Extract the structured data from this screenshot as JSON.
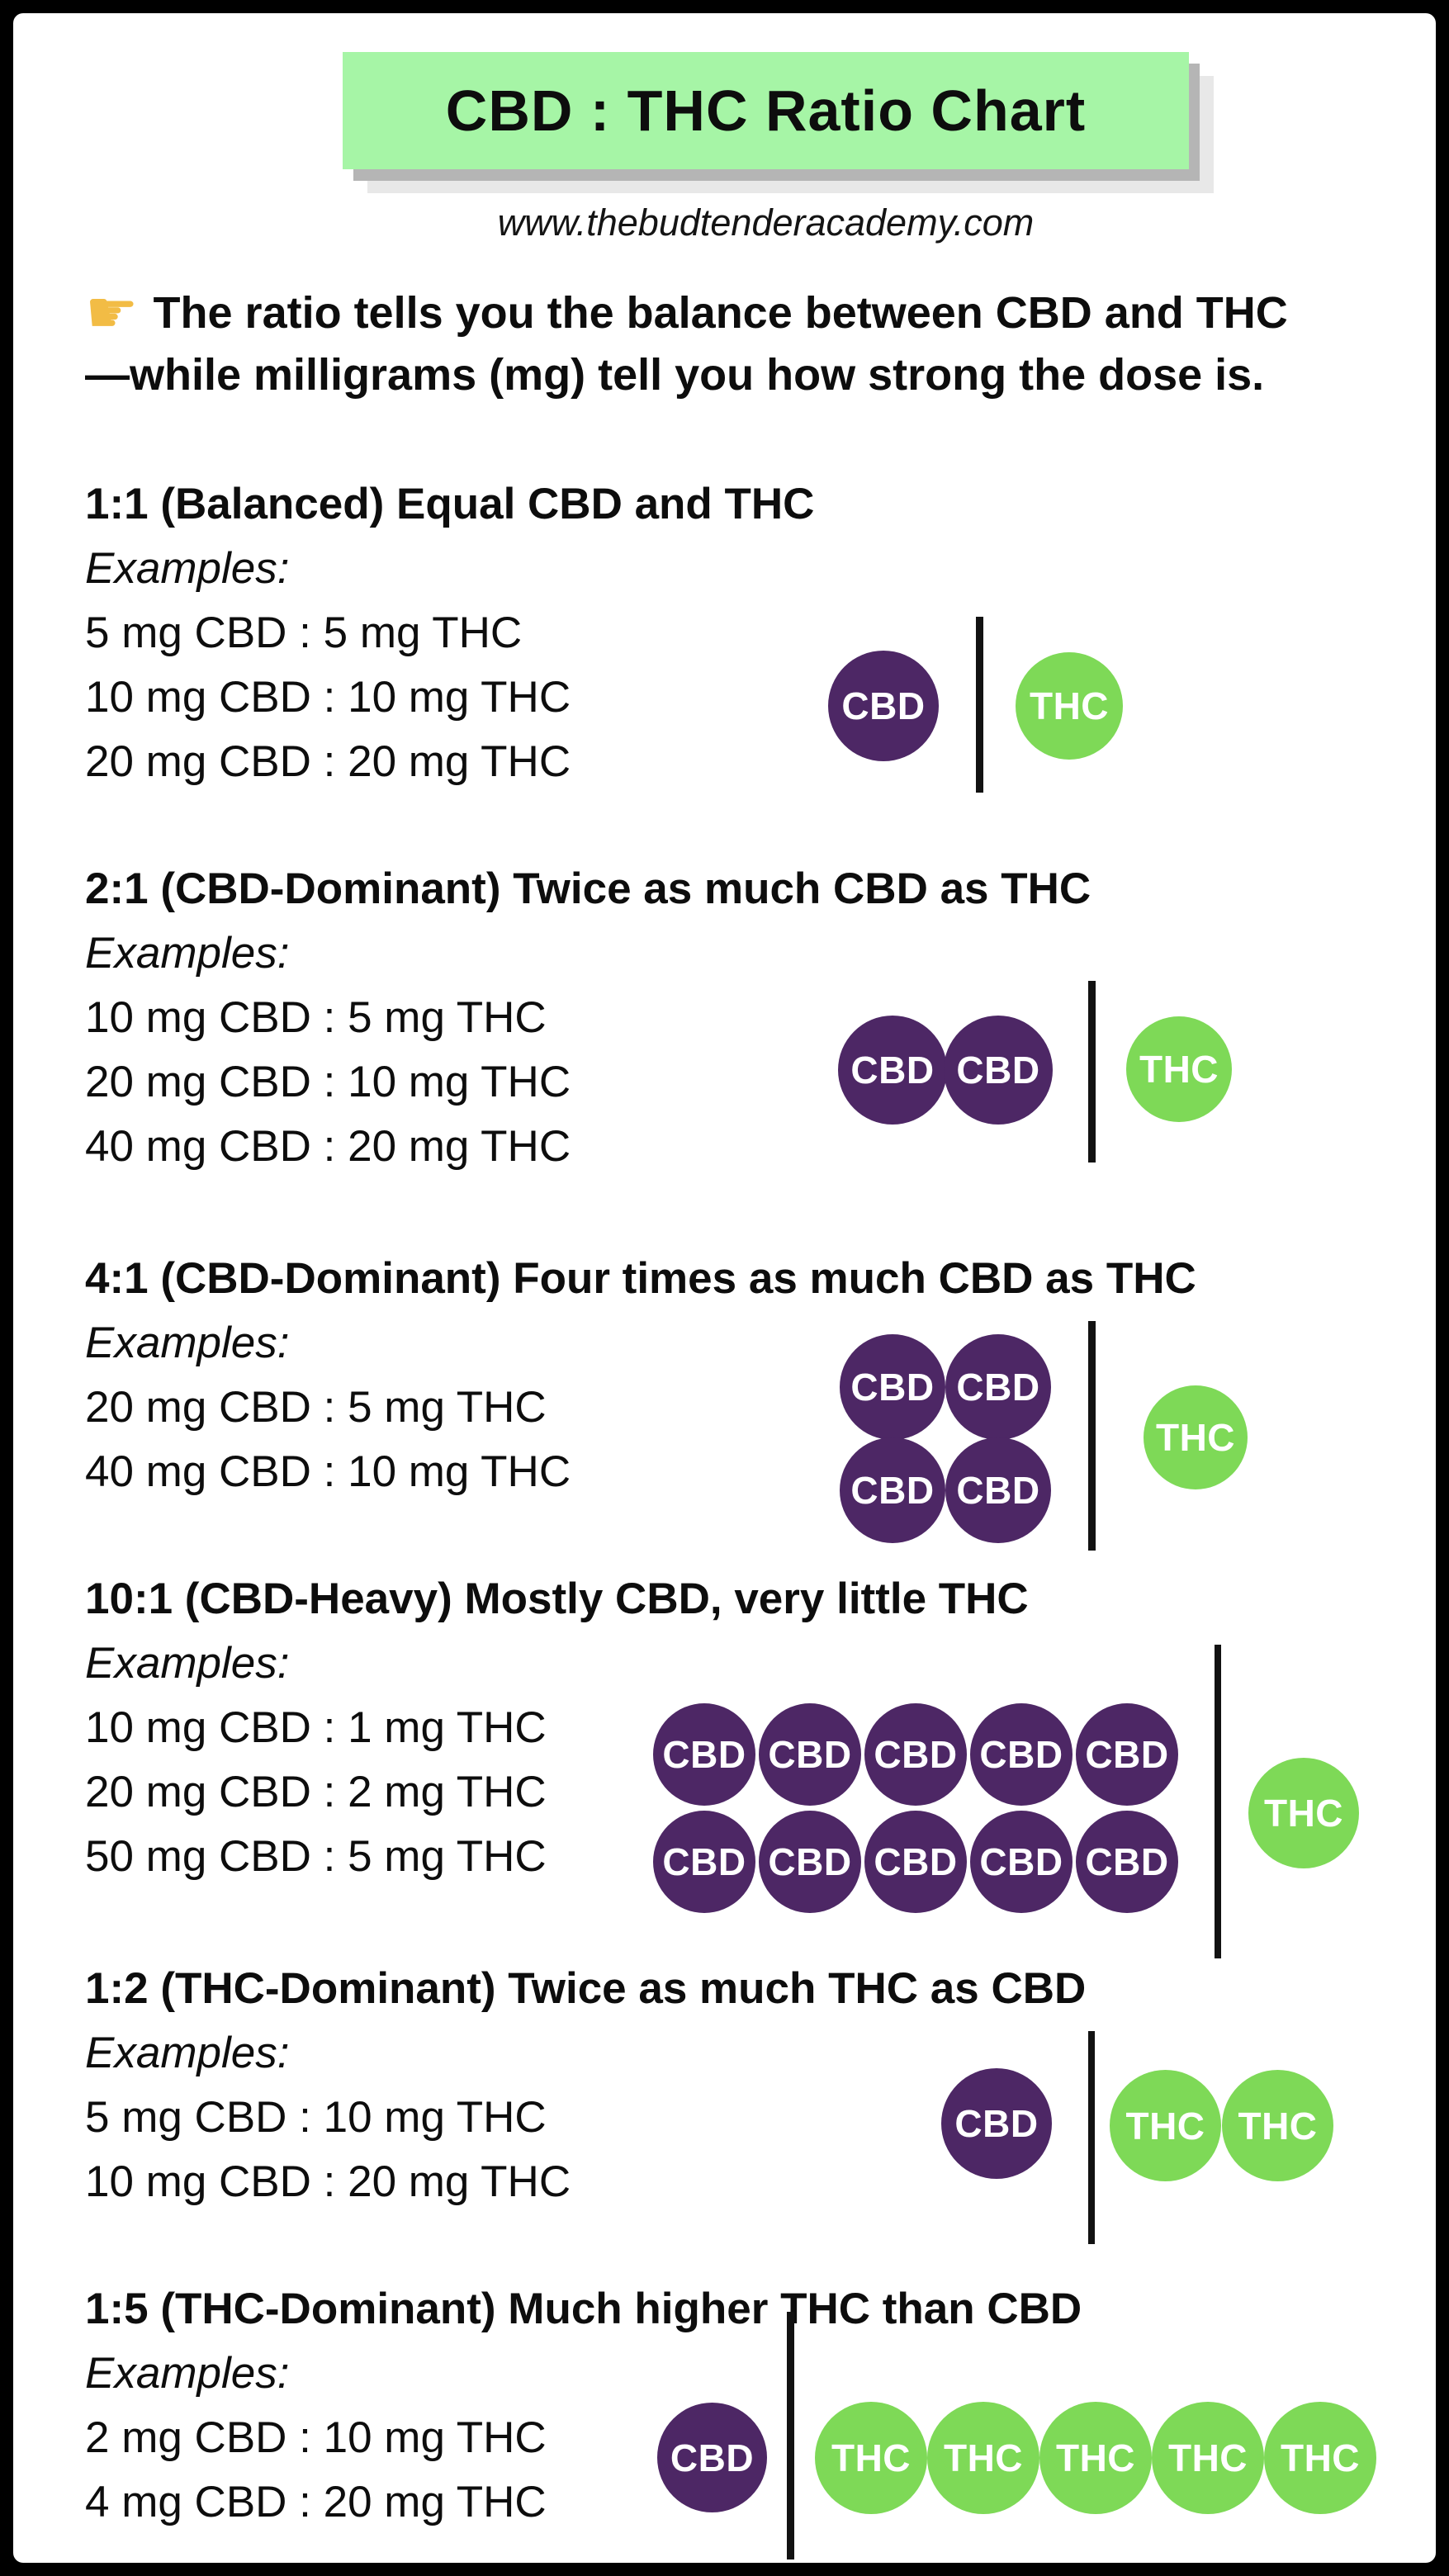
{
  "page": {
    "title": "CBD : THC Ratio Chart",
    "website": "www.thebudtenderacademy.com",
    "intro": {
      "line1": "The ratio tells you the balance between CBD and THC",
      "line2": "—while milligrams (mg) tell you how strong the dose is."
    }
  },
  "icons": {
    "pointing_hand": "☛"
  },
  "labels": {
    "cbd": "CBD",
    "thc": "THC"
  },
  "colors": {
    "frame": "#000000",
    "card_background": "#ffffff",
    "title_background": "#A6F5A6",
    "title_shadow": "#b5b5b5",
    "cbd_circle": "#4D2765",
    "thc_circle": "#7ED957",
    "divider": "#121212",
    "pointer_yellow": "#F2BC45",
    "text": "#0d0d0d"
  },
  "sections": [
    {
      "ratio": "1:1",
      "heading": "1:1 (Balanced) Equal CBD and THC",
      "examples_label": "Examples:",
      "examples": [
        "5 mg CBD : 5 mg THC",
        "10 mg CBD : 10 mg THC",
        "20 mg CBD : 20 mg THC"
      ],
      "cbd_units": 1,
      "thc_units": 1
    },
    {
      "ratio": "2:1",
      "heading": "2:1 (CBD-Dominant) Twice as much CBD as THC",
      "examples_label": "Examples:",
      "examples": [
        "10 mg CBD : 5 mg THC",
        "20 mg CBD : 10 mg THC",
        "40 mg CBD : 20 mg THC"
      ],
      "cbd_units": 2,
      "thc_units": 1
    },
    {
      "ratio": "4:1",
      "heading": "4:1 (CBD-Dominant) Four times as much CBD as THC",
      "examples_label": "Examples:",
      "examples": [
        "20 mg CBD : 5 mg THC",
        "40 mg CBD : 10 mg THC"
      ],
      "cbd_units": 4,
      "thc_units": 1
    },
    {
      "ratio": "10:1",
      "heading": "10:1 (CBD-Heavy) Mostly CBD, very little THC",
      "examples_label": "Examples:",
      "examples": [
        "10 mg CBD : 1 mg THC",
        "20 mg CBD : 2 mg THC",
        "50 mg CBD : 5 mg THC"
      ],
      "cbd_units": 10,
      "thc_units": 1
    },
    {
      "ratio": "1:2",
      "heading": "1:2 (THC-Dominant) Twice as much THC as CBD",
      "examples_label": "Examples:",
      "examples": [
        "5 mg CBD : 10 mg THC",
        "10 mg CBD : 20 mg THC"
      ],
      "cbd_units": 1,
      "thc_units": 2
    },
    {
      "ratio": "1:5",
      "heading": "1:5 (THC-Dominant) Much higher THC than CBD",
      "examples_label": "Examples:",
      "examples": [
        "2 mg CBD : 10 mg THC",
        "4 mg CBD : 20 mg THC"
      ],
      "cbd_units": 1,
      "thc_units": 5
    }
  ],
  "chart_data": {
    "type": "table",
    "title": "CBD : THC Ratio Chart",
    "source": "www.thebudtenderacademy.com",
    "note": "The ratio tells you the balance between CBD and THC—while milligrams (mg) tell you how strong the dose is.",
    "columns": [
      "ratio",
      "category",
      "description",
      "cbd_units",
      "thc_units",
      "examples"
    ],
    "rows": [
      {
        "ratio": "1:1",
        "category": "Balanced",
        "description": "Equal CBD and THC",
        "cbd_units": 1,
        "thc_units": 1,
        "examples": [
          "5 mg CBD : 5 mg THC",
          "10 mg CBD : 10 mg THC",
          "20 mg CBD : 20 mg THC"
        ]
      },
      {
        "ratio": "2:1",
        "category": "CBD-Dominant",
        "description": "Twice as much CBD as THC",
        "cbd_units": 2,
        "thc_units": 1,
        "examples": [
          "10 mg CBD : 5 mg THC",
          "20 mg CBD : 10 mg THC",
          "40 mg CBD : 20 mg THC"
        ]
      },
      {
        "ratio": "4:1",
        "category": "CBD-Dominant",
        "description": "Four times as much CBD as THC",
        "cbd_units": 4,
        "thc_units": 1,
        "examples": [
          "20 mg CBD : 5 mg THC",
          "40 mg CBD : 10 mg THC"
        ]
      },
      {
        "ratio": "10:1",
        "category": "CBD-Heavy",
        "description": "Mostly CBD, very little THC",
        "cbd_units": 10,
        "thc_units": 1,
        "examples": [
          "10 mg CBD : 1 mg THC",
          "20 mg CBD : 2 mg THC",
          "50 mg CBD : 5 mg THC"
        ]
      },
      {
        "ratio": "1:2",
        "category": "THC-Dominant",
        "description": "Twice as much THC as CBD",
        "cbd_units": 1,
        "thc_units": 2,
        "examples": [
          "5 mg CBD : 10 mg THC",
          "10 mg CBD : 20 mg THC"
        ]
      },
      {
        "ratio": "1:5",
        "category": "THC-Dominant",
        "description": "Much higher THC than CBD",
        "cbd_units": 1,
        "thc_units": 5,
        "examples": [
          "2 mg CBD : 10 mg THC",
          "4 mg CBD : 20 mg THC"
        ]
      }
    ]
  }
}
